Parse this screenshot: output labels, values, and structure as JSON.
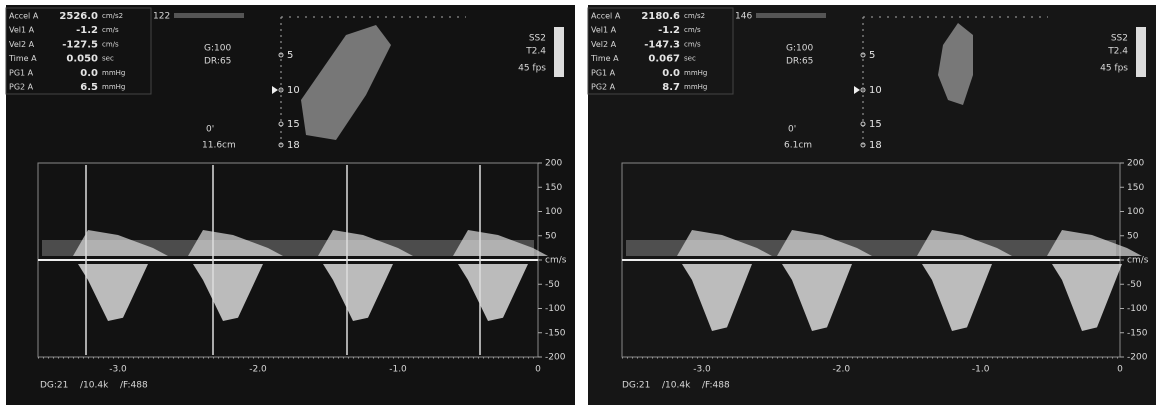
{
  "panels": [
    {
      "frame_number": "122",
      "measurements": [
        {
          "label": "Accel A",
          "value": "2526.0",
          "unit": "cm/s2"
        },
        {
          "label": "Vel1 A",
          "value": "-1.2",
          "unit": "cm/s"
        },
        {
          "label": "Vel2 A",
          "value": "-127.5",
          "unit": "cm/s"
        },
        {
          "label": "Time A",
          "value": "0.050",
          "unit": "sec"
        },
        {
          "label": "PG1 A",
          "value": "0.0",
          "unit": "mmHg"
        },
        {
          "label": "PG2 A",
          "value": "6.5",
          "unit": "mmHg"
        }
      ],
      "gain": "G:100",
      "dynamic_range": "DR:65",
      "angle": "0'",
      "gate_depth": "11.6cm",
      "probe": "SS2",
      "frequency": "T2.4",
      "frame_rate": "45 fps",
      "depth_labels": [
        "5",
        "10",
        "15",
        "18"
      ],
      "velocity_labels": [
        "200",
        "150",
        "100",
        "50",
        "cm/s",
        "-50",
        "-100",
        "-150",
        "-200"
      ],
      "time_labels": [
        "-3.0",
        "-2.0",
        "-1.0",
        "0"
      ],
      "footer": [
        "DG:21",
        "/10.4k",
        "/F:488"
      ]
    },
    {
      "frame_number": "146",
      "measurements": [
        {
          "label": "Accel A",
          "value": "2180.6",
          "unit": "cm/s2"
        },
        {
          "label": "Vel1 A",
          "value": "-1.2",
          "unit": "cm/s"
        },
        {
          "label": "Vel2 A",
          "value": "-147.3",
          "unit": "cm/s"
        },
        {
          "label": "Time A",
          "value": "0.067",
          "unit": "sec"
        },
        {
          "label": "PG1 A",
          "value": "0.0",
          "unit": "mmHg"
        },
        {
          "label": "PG2 A",
          "value": "8.7",
          "unit": "mmHg"
        }
      ],
      "gain": "G:100",
      "dynamic_range": "DR:65",
      "angle": "0'",
      "gate_depth": "6.1cm",
      "probe": "SS2",
      "frequency": "T2.4",
      "frame_rate": "45 fps",
      "depth_labels": [
        "5",
        "10",
        "15",
        "18"
      ],
      "velocity_labels": [
        "200",
        "150",
        "100",
        "50",
        "cm/s",
        "-50",
        "-100",
        "-150",
        "-200"
      ],
      "time_labels": [
        "-3.0",
        "-2.0",
        "-1.0",
        "0"
      ],
      "footer": [
        "DG:21",
        "/10.4k",
        "/F:488"
      ]
    }
  ]
}
